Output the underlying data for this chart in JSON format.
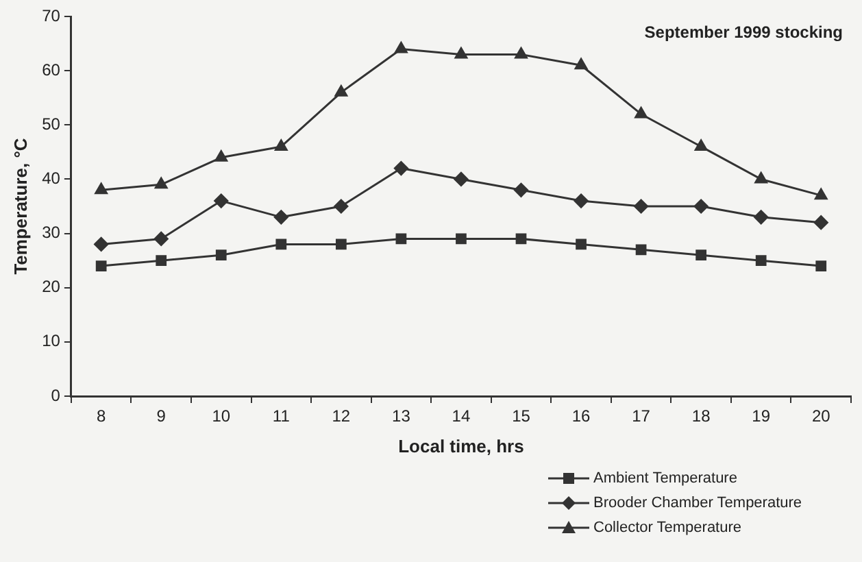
{
  "chart_data": {
    "type": "line",
    "title": "September 1999 stocking",
    "xlabel": "Local time, hrs",
    "ylabel": "Temperature, °C",
    "categories": [
      "8",
      "9",
      "10",
      "11",
      "12",
      "13",
      "14",
      "15",
      "16",
      "17",
      "18",
      "19",
      "20"
    ],
    "ylim": [
      0,
      70
    ],
    "yticks": [
      0,
      10,
      20,
      30,
      40,
      50,
      60,
      70
    ],
    "grid": false,
    "legend": "bottom right",
    "line_style": "solid",
    "series": [
      {
        "name": "Ambient Temperature",
        "color": "#333333",
        "marker": "square",
        "values": [
          24,
          25,
          26,
          28,
          28,
          29,
          29,
          29,
          28,
          27,
          26,
          25,
          24
        ]
      },
      {
        "name": "Brooder Chamber Temperature",
        "color": "#333333",
        "marker": "diamond",
        "values": [
          28,
          29,
          36,
          33,
          35,
          42,
          40,
          38,
          36,
          35,
          35,
          33,
          32
        ]
      },
      {
        "name": "Collector Temperature",
        "color": "#333333",
        "marker": "triangle",
        "values": [
          38,
          39,
          44,
          46,
          56,
          64,
          63,
          63,
          61,
          52,
          46,
          40,
          37
        ]
      }
    ]
  }
}
